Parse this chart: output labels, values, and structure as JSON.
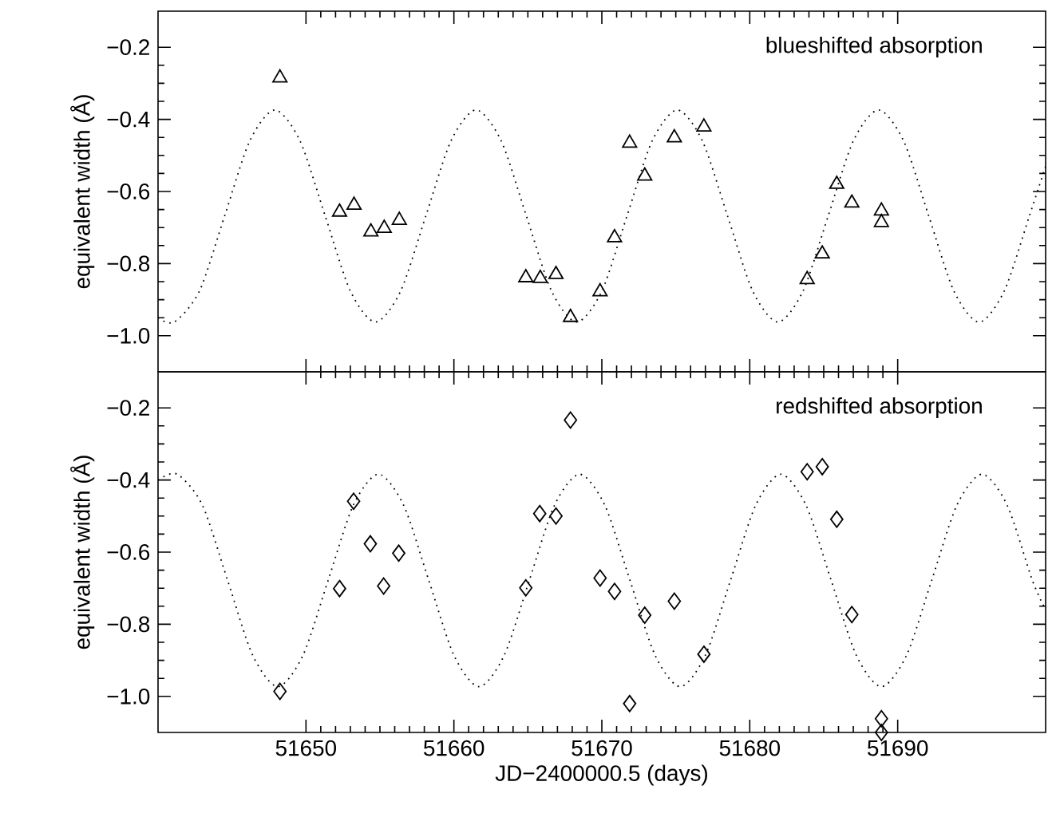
{
  "chart_data": [
    {
      "type": "scatter",
      "ylabel": "equivalent width (Å)",
      "annotations": [
        "blueshifted absorption"
      ],
      "xlim": [
        51640,
        51700
      ],
      "ylim": [
        -1.1,
        -0.1
      ],
      "xticks": [
        51650,
        51660,
        51670,
        51680,
        51690
      ],
      "yticks": [
        {
          "value": -1.0,
          "label": "−1.0"
        },
        {
          "value": -0.8,
          "label": "−0.8"
        },
        {
          "value": -0.6,
          "label": "−0.6"
        },
        {
          "value": -0.4,
          "label": "−0.4"
        },
        {
          "value": -0.2,
          "label": "−0.2"
        }
      ],
      "tick_labels": "y",
      "series": [
        {
          "type": "line",
          "color": "#000000",
          "line_style": "dotted",
          "marker": "none",
          "x": [
            51640.0,
            51641.1,
            51642.8,
            51644.5,
            51646.2,
            51647.9,
            51649.6,
            51651.3,
            51653.0,
            51654.7,
            51656.4,
            51658.1,
            51659.8,
            51661.5,
            51663.2,
            51664.9,
            51666.6,
            51668.3,
            51670.0,
            51671.7,
            51673.4,
            51675.1,
            51676.8,
            51678.5,
            51680.2,
            51681.9,
            51683.6,
            51685.3,
            51687.0,
            51688.7,
            51690.4,
            51692.1,
            51693.8,
            51695.5,
            51697.2,
            51698.9,
            51700.0
          ],
          "values": [
            -0.95,
            -0.962,
            -0.876,
            -0.668,
            -0.46,
            -0.374,
            -0.46,
            -0.668,
            -0.876,
            -0.962,
            -0.876,
            -0.668,
            -0.46,
            -0.374,
            -0.46,
            -0.668,
            -0.876,
            -0.962,
            -0.876,
            -0.668,
            -0.46,
            -0.374,
            -0.46,
            -0.668,
            -0.876,
            -0.962,
            -0.876,
            -0.668,
            -0.46,
            -0.374,
            -0.46,
            -0.668,
            -0.876,
            -0.962,
            -0.876,
            -0.668,
            -0.53
          ]
        },
        {
          "type": "scatter",
          "color": "#000000",
          "marker": "triangle",
          "x": [
            51648.24,
            51652.27,
            51653.25,
            51654.39,
            51655.29,
            51656.31,
            51664.86,
            51665.84,
            51666.9,
            51667.88,
            51669.88,
            51670.86,
            51671.88,
            51672.9,
            51674.9,
            51676.9,
            51683.88,
            51684.9,
            51685.88,
            51686.9,
            51688.9,
            51688.9
          ],
          "values": [
            -0.285,
            -0.657,
            -0.638,
            -0.712,
            -0.702,
            -0.68,
            -0.839,
            -0.841,
            -0.83,
            -0.949,
            -0.878,
            -0.728,
            -0.466,
            -0.557,
            -0.451,
            -0.421,
            -0.844,
            -0.773,
            -0.58,
            -0.632,
            -0.654,
            -0.686
          ]
        }
      ]
    },
    {
      "type": "scatter",
      "ylabel": "equivalent width (Å)",
      "xlabel": "JD−2400000.5 (days)",
      "annotations": [
        "redshifted absorption"
      ],
      "xlim": [
        51640,
        51700
      ],
      "ylim": [
        -1.1,
        -0.1
      ],
      "xticks": [
        51650,
        51660,
        51670,
        51680,
        51690
      ],
      "yticks": [
        {
          "value": -1.0,
          "label": "−1.0"
        },
        {
          "value": -0.8,
          "label": "−0.8"
        },
        {
          "value": -0.6,
          "label": "−0.6"
        },
        {
          "value": -0.4,
          "label": "−0.4"
        },
        {
          "value": -0.2,
          "label": "−0.2"
        }
      ],
      "series": [
        {
          "type": "line",
          "color": "#000000",
          "line_style": "dotted",
          "marker": "none",
          "x": [
            51640.0,
            51641.3,
            51643.0,
            51644.7,
            51646.4,
            51648.1,
            51649.8,
            51651.5,
            51653.2,
            51654.9,
            51656.6,
            51658.3,
            51660.0,
            51661.7,
            51663.4,
            51665.1,
            51666.8,
            51668.5,
            51670.2,
            51671.9,
            51673.6,
            51675.3,
            51677.0,
            51678.7,
            51680.4,
            51682.1,
            51683.8,
            51685.5,
            51687.2,
            51688.9,
            51690.6,
            51692.3,
            51694.0,
            51695.7,
            51697.4,
            51699.1,
            51700.0
          ],
          "values": [
            -0.4,
            -0.384,
            -0.47,
            -0.678,
            -0.886,
            -0.973,
            -0.886,
            -0.678,
            -0.47,
            -0.384,
            -0.47,
            -0.678,
            -0.886,
            -0.973,
            -0.886,
            -0.678,
            -0.47,
            -0.384,
            -0.47,
            -0.678,
            -0.886,
            -0.973,
            -0.886,
            -0.678,
            -0.47,
            -0.384,
            -0.47,
            -0.678,
            -0.886,
            -0.973,
            -0.886,
            -0.678,
            -0.47,
            -0.384,
            -0.47,
            -0.678,
            -0.76
          ]
        },
        {
          "type": "scatter",
          "color": "#000000",
          "marker": "diamond",
          "x": [
            51648.24,
            51652.27,
            51653.22,
            51654.35,
            51655.25,
            51656.27,
            51664.86,
            51665.8,
            51666.9,
            51667.88,
            51669.88,
            51670.86,
            51671.88,
            51672.9,
            51674.9,
            51676.9,
            51683.88,
            51684.9,
            51685.88,
            51686.9,
            51688.9,
            51688.9
          ],
          "values": [
            -0.986,
            -0.701,
            -0.459,
            -0.577,
            -0.694,
            -0.603,
            -0.699,
            -0.493,
            -0.5,
            -0.234,
            -0.672,
            -0.709,
            -1.02,
            -0.775,
            -0.736,
            -0.883,
            -0.377,
            -0.363,
            -0.509,
            -0.773,
            -1.062,
            -1.1
          ]
        }
      ]
    }
  ]
}
